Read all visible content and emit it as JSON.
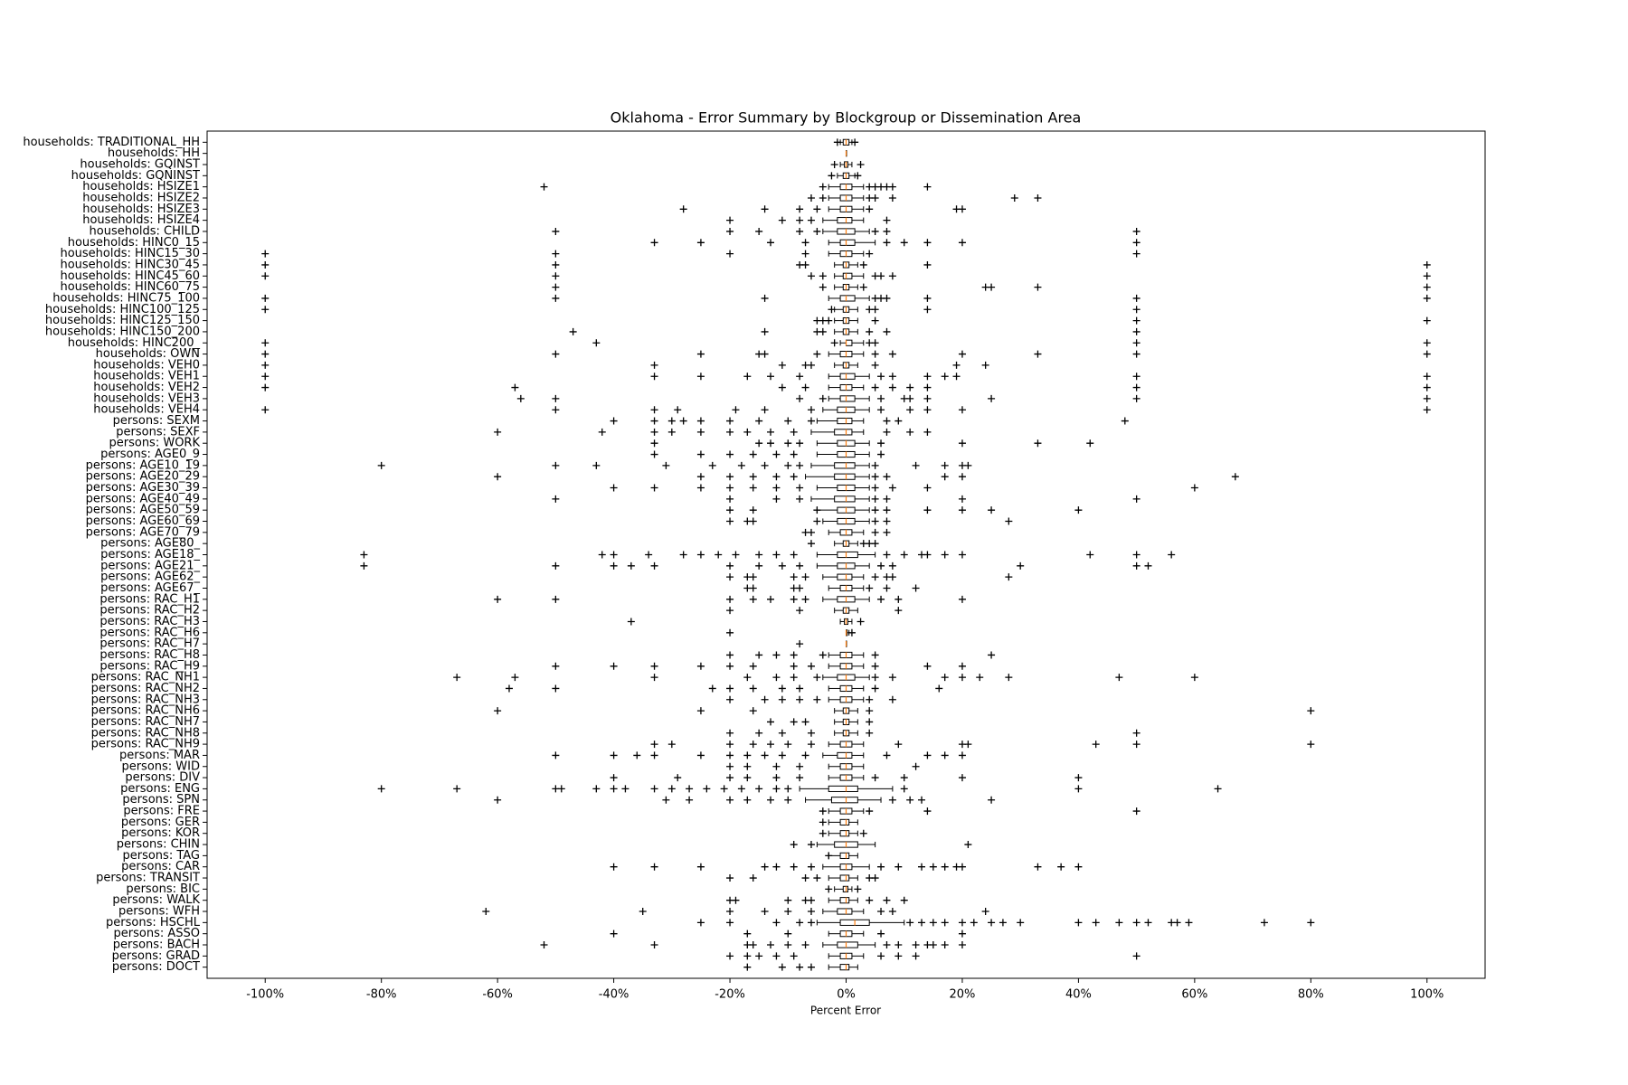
{
  "chart_data": {
    "type": "boxplot",
    "orientation": "horizontal",
    "title": "Oklahoma - Error Summary by Blockgroup or Dissemination Area",
    "x_label": "Percent Error",
    "xlim": [
      -110,
      110
    ],
    "xticks": [
      {
        "value": -100,
        "label": "-100%"
      },
      {
        "value": -80,
        "label": "-80%"
      },
      {
        "value": -60,
        "label": "-60%"
      },
      {
        "value": -40,
        "label": "-40%"
      },
      {
        "value": -20,
        "label": "-20%"
      },
      {
        "value": 0,
        "label": "0%"
      },
      {
        "value": 20,
        "label": "20%"
      },
      {
        "value": 40,
        "label": "40%"
      },
      {
        "value": 60,
        "label": "60%"
      },
      {
        "value": 80,
        "label": "80%"
      },
      {
        "value": 100,
        "label": "100%"
      }
    ],
    "box_color": "#000000",
    "median_color": "#ff7f0e",
    "flier_color": "#000000",
    "categories": [
      "households: TRADITIONAL_HH",
      "households: HH",
      "households: GQINST",
      "households: GQNINST",
      "households: HSIZE1",
      "households: HSIZE2",
      "households: HSIZE3",
      "households: HSIZE4",
      "households: CHILD",
      "households: HINC0_15",
      "households: HINC15_30",
      "households: HINC30_45",
      "households: HINC45_60",
      "households: HINC60_75",
      "households: HINC75_100",
      "households: HINC100_125",
      "households: HINC125_150",
      "households: HINC150_200",
      "households: HINC200_",
      "households: OWN",
      "households: VEH0",
      "households: VEH1",
      "households: VEH2",
      "households: VEH3",
      "households: VEH4",
      "persons: SEXM",
      "persons: SEXF",
      "persons: WORK",
      "persons: AGE0_9",
      "persons: AGE10_19",
      "persons: AGE20_29",
      "persons: AGE30_39",
      "persons: AGE40_49",
      "persons: AGE50_59",
      "persons: AGE60_69",
      "persons: AGE70_79",
      "persons: AGE80_",
      "persons: AGE18_",
      "persons: AGE21_",
      "persons: AGE62_",
      "persons: AGE67_",
      "persons: RAC_H1",
      "persons: RAC_H2",
      "persons: RAC_H3",
      "persons: RAC_H6",
      "persons: RAC_H7",
      "persons: RAC_H8",
      "persons: RAC_H9",
      "persons: RAC_NH1",
      "persons: RAC_NH2",
      "persons: RAC_NH3",
      "persons: RAC_NH6",
      "persons: RAC_NH7",
      "persons: RAC_NH8",
      "persons: RAC_NH9",
      "persons: MAR",
      "persons: WID",
      "persons: DIV",
      "persons: ENG",
      "persons: SPN",
      "persons: FRE",
      "persons: GER",
      "persons: KOR",
      "persons: CHIN",
      "persons: TAG",
      "persons: CAR",
      "persons: TRANSIT",
      "persons: BIC",
      "persons: WALK",
      "persons: WFH",
      "persons: HSCHL",
      "persons: ASSO",
      "persons: BACH",
      "persons: GRAD",
      "persons: DOCT"
    ],
    "whislo": [
      -1,
      0,
      -1,
      -1.5,
      -3,
      -3,
      -3,
      -4,
      -4,
      -3,
      -3,
      -2,
      -2,
      -2,
      -3,
      -2,
      -2,
      -2,
      -1,
      -3,
      -2,
      -3,
      -3,
      -3,
      -4,
      -5,
      -6,
      -5,
      -5,
      -6,
      -7,
      -5,
      -6,
      -5,
      -4,
      -3,
      -2,
      -5,
      -5,
      -4,
      -3,
      -4,
      -2,
      -1,
      0,
      0,
      -3,
      -3,
      -4,
      -3,
      -3,
      -2,
      -2,
      -2,
      -3,
      -4,
      -3,
      -3,
      -8,
      -7,
      -3,
      -3,
      -3,
      -5,
      -3,
      -4,
      -3,
      -2,
      -3,
      -4,
      -5,
      -3,
      -4,
      -3,
      -3
    ],
    "q1": [
      -0.5,
      0,
      -0.3,
      -0.5,
      -1,
      -1,
      -1,
      -1.5,
      -1.5,
      -1,
      -1,
      -0.5,
      -0.5,
      -0.5,
      -1,
      -0.5,
      -0.5,
      -0.5,
      0,
      -1,
      -0.5,
      -1,
      -1,
      -1,
      -1.5,
      -1.5,
      -2,
      -1.5,
      -1.5,
      -2,
      -2,
      -1.5,
      -2,
      -1.5,
      -1.5,
      -1,
      -0.5,
      -1.5,
      -1.5,
      -1.5,
      -1,
      -1.5,
      -0.5,
      -0.3,
      0,
      0,
      -1,
      -1,
      -1.5,
      -1,
      -1,
      -0.5,
      -0.5,
      -0.5,
      -1,
      -1.5,
      -1,
      -1,
      -3,
      -2.5,
      -1,
      -1,
      -1,
      -2,
      -1,
      -1,
      -1,
      -0.5,
      -1,
      -1.5,
      -1,
      -1,
      -1.5,
      -1,
      -1
    ],
    "median": [
      0,
      0,
      0,
      0,
      0,
      0,
      0,
      0,
      0,
      0,
      0,
      0,
      0,
      0,
      0,
      0,
      0,
      0,
      0,
      0,
      0,
      0,
      0,
      0,
      0,
      0,
      0,
      0,
      0,
      0,
      0,
      0,
      0,
      0,
      0,
      0,
      0,
      0,
      0,
      0,
      0,
      0,
      0,
      0,
      0,
      0,
      0,
      0,
      0,
      0,
      0,
      0,
      0,
      0,
      0,
      0,
      0,
      0,
      0,
      0,
      0,
      0,
      0,
      0,
      0,
      0,
      0,
      0,
      0,
      0,
      1.5,
      0,
      0,
      0,
      0
    ],
    "q3": [
      0.5,
      0,
      0.3,
      0.5,
      1,
      1,
      1,
      1,
      1.5,
      1.5,
      1,
      0.5,
      1,
      0.5,
      1.5,
      0.5,
      0.5,
      0.5,
      1,
      1,
      0.5,
      1.5,
      1,
      1.5,
      1.5,
      1,
      1,
      1.5,
      1.5,
      1.5,
      1.5,
      1.5,
      1.5,
      1.5,
      1.5,
      1,
      0.5,
      2,
      1.5,
      1,
      1,
      1.5,
      0.5,
      0.3,
      0.2,
      0,
      1,
      1,
      1.5,
      1,
      1,
      0.5,
      0.5,
      0.5,
      1,
      1,
      1,
      1,
      2,
      2,
      1,
      0.5,
      0.5,
      2,
      0.5,
      1,
      0.5,
      0.3,
      0.5,
      1,
      4,
      1,
      2,
      1,
      0.5
    ],
    "whishi": [
      1,
      0,
      1,
      1.5,
      3,
      3,
      3,
      3,
      4,
      5,
      3,
      2,
      3,
      2,
      4,
      2,
      2,
      2,
      3,
      3,
      2,
      4,
      3,
      4,
      4,
      3,
      3,
      4,
      4,
      4,
      4,
      4,
      4,
      4,
      4,
      3,
      2,
      5,
      4,
      3,
      3,
      4,
      2,
      1,
      0.5,
      0,
      3,
      3,
      4,
      3,
      3,
      2,
      2,
      2,
      3,
      3,
      3,
      3,
      8,
      6,
      3,
      2,
      2,
      5,
      2,
      4,
      2,
      1,
      2,
      3,
      10,
      3,
      5,
      3,
      2
    ],
    "fliers": [
      [
        -1.5,
        1.5
      ],
      [],
      [
        -2,
        2.5
      ],
      [
        -2.5,
        2
      ],
      [
        -52,
        -4,
        4,
        5,
        6,
        7,
        8,
        14
      ],
      [
        -6,
        -4,
        4,
        5,
        8,
        29,
        33
      ],
      [
        -28,
        -14,
        -8,
        -5,
        4,
        19,
        20
      ],
      [
        -20,
        -11,
        -8,
        -6,
        7
      ],
      [
        -50,
        -20,
        -15,
        -8,
        -5,
        5,
        7,
        50
      ],
      [
        -33,
        -25,
        -13,
        -7,
        7,
        10,
        14,
        20,
        50
      ],
      [
        -100,
        -50,
        -20,
        -7,
        4,
        50
      ],
      [
        -100,
        -50,
        -8,
        -7,
        3,
        14,
        100
      ],
      [
        -100,
        -50,
        -6,
        -4,
        5,
        6,
        8,
        100
      ],
      [
        -50,
        -4,
        3,
        24,
        25,
        33,
        100
      ],
      [
        -100,
        -50,
        -14,
        5,
        6,
        7,
        14,
        50,
        100
      ],
      [
        -100,
        -2.5,
        4,
        5,
        14,
        50
      ],
      [
        -5,
        -4,
        -3,
        5,
        50,
        100
      ],
      [
        -47,
        -14,
        -5,
        -4,
        4,
        7,
        50
      ],
      [
        -100,
        -43,
        -2,
        4,
        5,
        50,
        100
      ],
      [
        -100,
        -50,
        -25,
        -15,
        -14,
        -5,
        5,
        8,
        20,
        33,
        50,
        100
      ],
      [
        -100,
        -33,
        -11,
        -7,
        -6,
        5,
        19,
        24
      ],
      [
        -100,
        -33,
        -25,
        -17,
        -13,
        -8,
        6,
        8,
        14,
        17,
        19,
        50,
        100
      ],
      [
        -100,
        -57,
        -11,
        -7,
        5,
        8,
        11,
        14,
        50,
        100
      ],
      [
        -56,
        -50,
        -8,
        -4,
        6,
        10,
        11,
        14,
        25,
        50,
        100
      ],
      [
        -100,
        -50,
        -33,
        -29,
        -19,
        -14,
        -6,
        6,
        11,
        14,
        20,
        100
      ],
      [
        -40,
        -33,
        -30,
        -28,
        -25,
        -20,
        -15,
        -10,
        -6,
        7,
        9,
        48
      ],
      [
        -60,
        -42,
        -33,
        -30,
        -25,
        -20,
        -17,
        -13,
        -9,
        7,
        11,
        14
      ],
      [
        -33,
        -15,
        -13,
        -10,
        -8,
        6,
        20,
        33,
        42
      ],
      [
        -33,
        -25,
        -20,
        -16,
        -12,
        -9,
        6
      ],
      [
        -80,
        -50,
        -43,
        -31,
        -23,
        -18,
        -14,
        -10,
        -8,
        5,
        12,
        17,
        20,
        21
      ],
      [
        -60,
        -25,
        -20,
        -16,
        -12,
        -9,
        5,
        7,
        17,
        20,
        67
      ],
      [
        -40,
        -33,
        -25,
        -20,
        -16,
        -12,
        -8,
        5,
        8,
        14,
        60
      ],
      [
        -50,
        -20,
        -12,
        -8,
        5,
        7,
        20,
        50
      ],
      [
        -20,
        -16,
        -5,
        5,
        7,
        14,
        20,
        25,
        40
      ],
      [
        -20,
        -17,
        -16,
        -5,
        5,
        7,
        28
      ],
      [
        -7,
        -6,
        5,
        7
      ],
      [
        -6,
        3,
        4,
        5
      ],
      [
        -83,
        -42,
        -40,
        -34,
        -28,
        -25,
        -22,
        -19,
        -15,
        -12,
        -9,
        7,
        10,
        13,
        14,
        17,
        20,
        42,
        50,
        56
      ],
      [
        -83,
        -50,
        -40,
        -37,
        -33,
        -20,
        -15,
        -11,
        -8,
        6,
        8,
        30,
        50,
        52
      ],
      [
        -20,
        -17,
        -16,
        -9,
        -7,
        5,
        7,
        8,
        28
      ],
      [
        -17,
        -16,
        -9,
        -8,
        4,
        7,
        12
      ],
      [
        -60,
        -50,
        -20,
        -16,
        -13,
        -9,
        -7,
        6,
        9,
        20
      ],
      [
        -20,
        -8,
        9
      ],
      [
        -37,
        2.5
      ],
      [
        -20,
        1
      ],
      [
        -8
      ],
      [
        -20,
        -15,
        -12,
        -9,
        -4,
        5,
        25
      ],
      [
        -50,
        -40,
        -33,
        -25,
        -20,
        -16,
        -9,
        -6,
        5,
        14,
        20
      ],
      [
        -67,
        -57,
        -33,
        -17,
        -12,
        -9,
        -5,
        5,
        8,
        17,
        20,
        23,
        28,
        47,
        60
      ],
      [
        -58,
        -50,
        -23,
        -20,
        -16,
        -11,
        -8,
        5,
        16
      ],
      [
        -20,
        -14,
        -11,
        -8,
        -5,
        4,
        8
      ],
      [
        -60,
        -25,
        -16,
        4,
        80
      ],
      [
        -13,
        -9,
        -7,
        4
      ],
      [
        -20,
        -15,
        -11,
        -6,
        4,
        50
      ],
      [
        -33,
        -30,
        -20,
        -16,
        -13,
        -10,
        -6,
        9,
        20,
        21,
        43,
        50,
        80
      ],
      [
        -50,
        -40,
        -36,
        -33,
        -25,
        -20,
        -17,
        -14,
        -11,
        -7,
        7,
        14,
        17,
        20
      ],
      [
        -20,
        -17,
        -12,
        -8,
        12
      ],
      [
        -40,
        -29,
        -20,
        -17,
        -12,
        -8,
        5,
        10,
        20,
        40
      ],
      [
        -80,
        -67,
        -50,
        -49,
        -43,
        -40,
        -38,
        -33,
        -30,
        -27,
        -24,
        -21,
        -18,
        -15,
        -12,
        -10,
        10,
        40,
        64
      ],
      [
        -60,
        -31,
        -27,
        -20,
        -17,
        -13,
        -10,
        8,
        11,
        13,
        25
      ],
      [
        -4,
        4,
        14,
        50
      ],
      [
        -4
      ],
      [
        -4,
        3
      ],
      [
        -9,
        -6,
        21
      ],
      [
        -3
      ],
      [
        -40,
        -33,
        -25,
        -14,
        -12,
        -9,
        -6,
        6,
        9,
        13,
        15,
        17,
        19,
        20,
        33,
        37,
        40
      ],
      [
        -20,
        -16,
        -7,
        -5,
        4,
        5
      ],
      [
        -3,
        2
      ],
      [
        -20,
        -19,
        -10,
        -7,
        -6,
        4,
        7,
        10
      ],
      [
        -62,
        -35,
        -20,
        -14,
        -10,
        -6,
        6,
        8,
        24
      ],
      [
        -25,
        -20,
        -12,
        -8,
        -6,
        11,
        13,
        15,
        17,
        20,
        22,
        25,
        27,
        30,
        40,
        43,
        47,
        50,
        52,
        56,
        57,
        59,
        72,
        80
      ],
      [
        -40,
        -17,
        -10,
        6,
        20
      ],
      [
        -52,
        -33,
        -17,
        -16,
        -13,
        -10,
        -7,
        7,
        9,
        12,
        14,
        15,
        17,
        20
      ],
      [
        -20,
        -17,
        -15,
        -12,
        -9,
        6,
        9,
        12,
        50
      ],
      [
        -17,
        -11,
        -8,
        -6
      ]
    ]
  }
}
